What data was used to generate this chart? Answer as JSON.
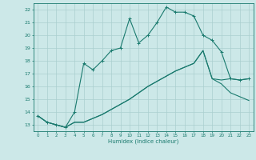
{
  "xlabel": "Humidex (Indice chaleur)",
  "bg_color": "#cce8e8",
  "grid_color": "#aacfcf",
  "line_color": "#1a7a6e",
  "xlim": [
    -0.5,
    23.5
  ],
  "ylim": [
    12.5,
    22.5
  ],
  "yticks": [
    13,
    14,
    15,
    16,
    17,
    18,
    19,
    20,
    21,
    22
  ],
  "xticks": [
    0,
    1,
    2,
    3,
    4,
    5,
    6,
    7,
    8,
    9,
    10,
    11,
    12,
    13,
    14,
    15,
    16,
    17,
    18,
    19,
    20,
    21,
    22,
    23
  ],
  "line1_x": [
    0,
    1,
    2,
    3,
    4,
    5,
    6,
    7,
    8,
    9,
    10,
    11,
    12,
    13,
    14,
    15,
    16,
    17,
    18,
    19,
    20,
    21,
    22,
    23
  ],
  "line1_y": [
    13.7,
    13.2,
    13.0,
    12.8,
    14.0,
    17.8,
    17.3,
    18.0,
    18.8,
    19.0,
    21.3,
    19.4,
    20.0,
    21.0,
    22.2,
    21.8,
    21.8,
    21.5,
    20.0,
    19.6,
    18.7,
    16.6,
    16.5,
    16.6
  ],
  "line2_x": [
    0,
    1,
    2,
    3,
    4,
    5,
    6,
    7,
    8,
    9,
    10,
    11,
    12,
    13,
    14,
    15,
    16,
    17,
    18,
    19,
    20,
    21,
    22,
    23
  ],
  "line2_y": [
    13.7,
    13.2,
    13.0,
    12.8,
    13.2,
    13.2,
    13.5,
    13.8,
    14.2,
    14.6,
    15.0,
    15.5,
    16.0,
    16.4,
    16.8,
    17.2,
    17.5,
    17.8,
    18.8,
    16.6,
    16.5,
    16.6,
    16.5,
    16.6
  ],
  "line3_x": [
    0,
    1,
    2,
    3,
    4,
    5,
    6,
    7,
    8,
    9,
    10,
    11,
    12,
    13,
    14,
    15,
    16,
    17,
    18,
    19,
    20,
    21,
    22,
    23
  ],
  "line3_y": [
    13.7,
    13.2,
    13.0,
    12.8,
    13.2,
    13.2,
    13.5,
    13.8,
    14.2,
    14.6,
    15.0,
    15.5,
    16.0,
    16.4,
    16.8,
    17.2,
    17.5,
    17.8,
    18.8,
    16.6,
    16.2,
    15.5,
    15.2,
    14.9
  ]
}
